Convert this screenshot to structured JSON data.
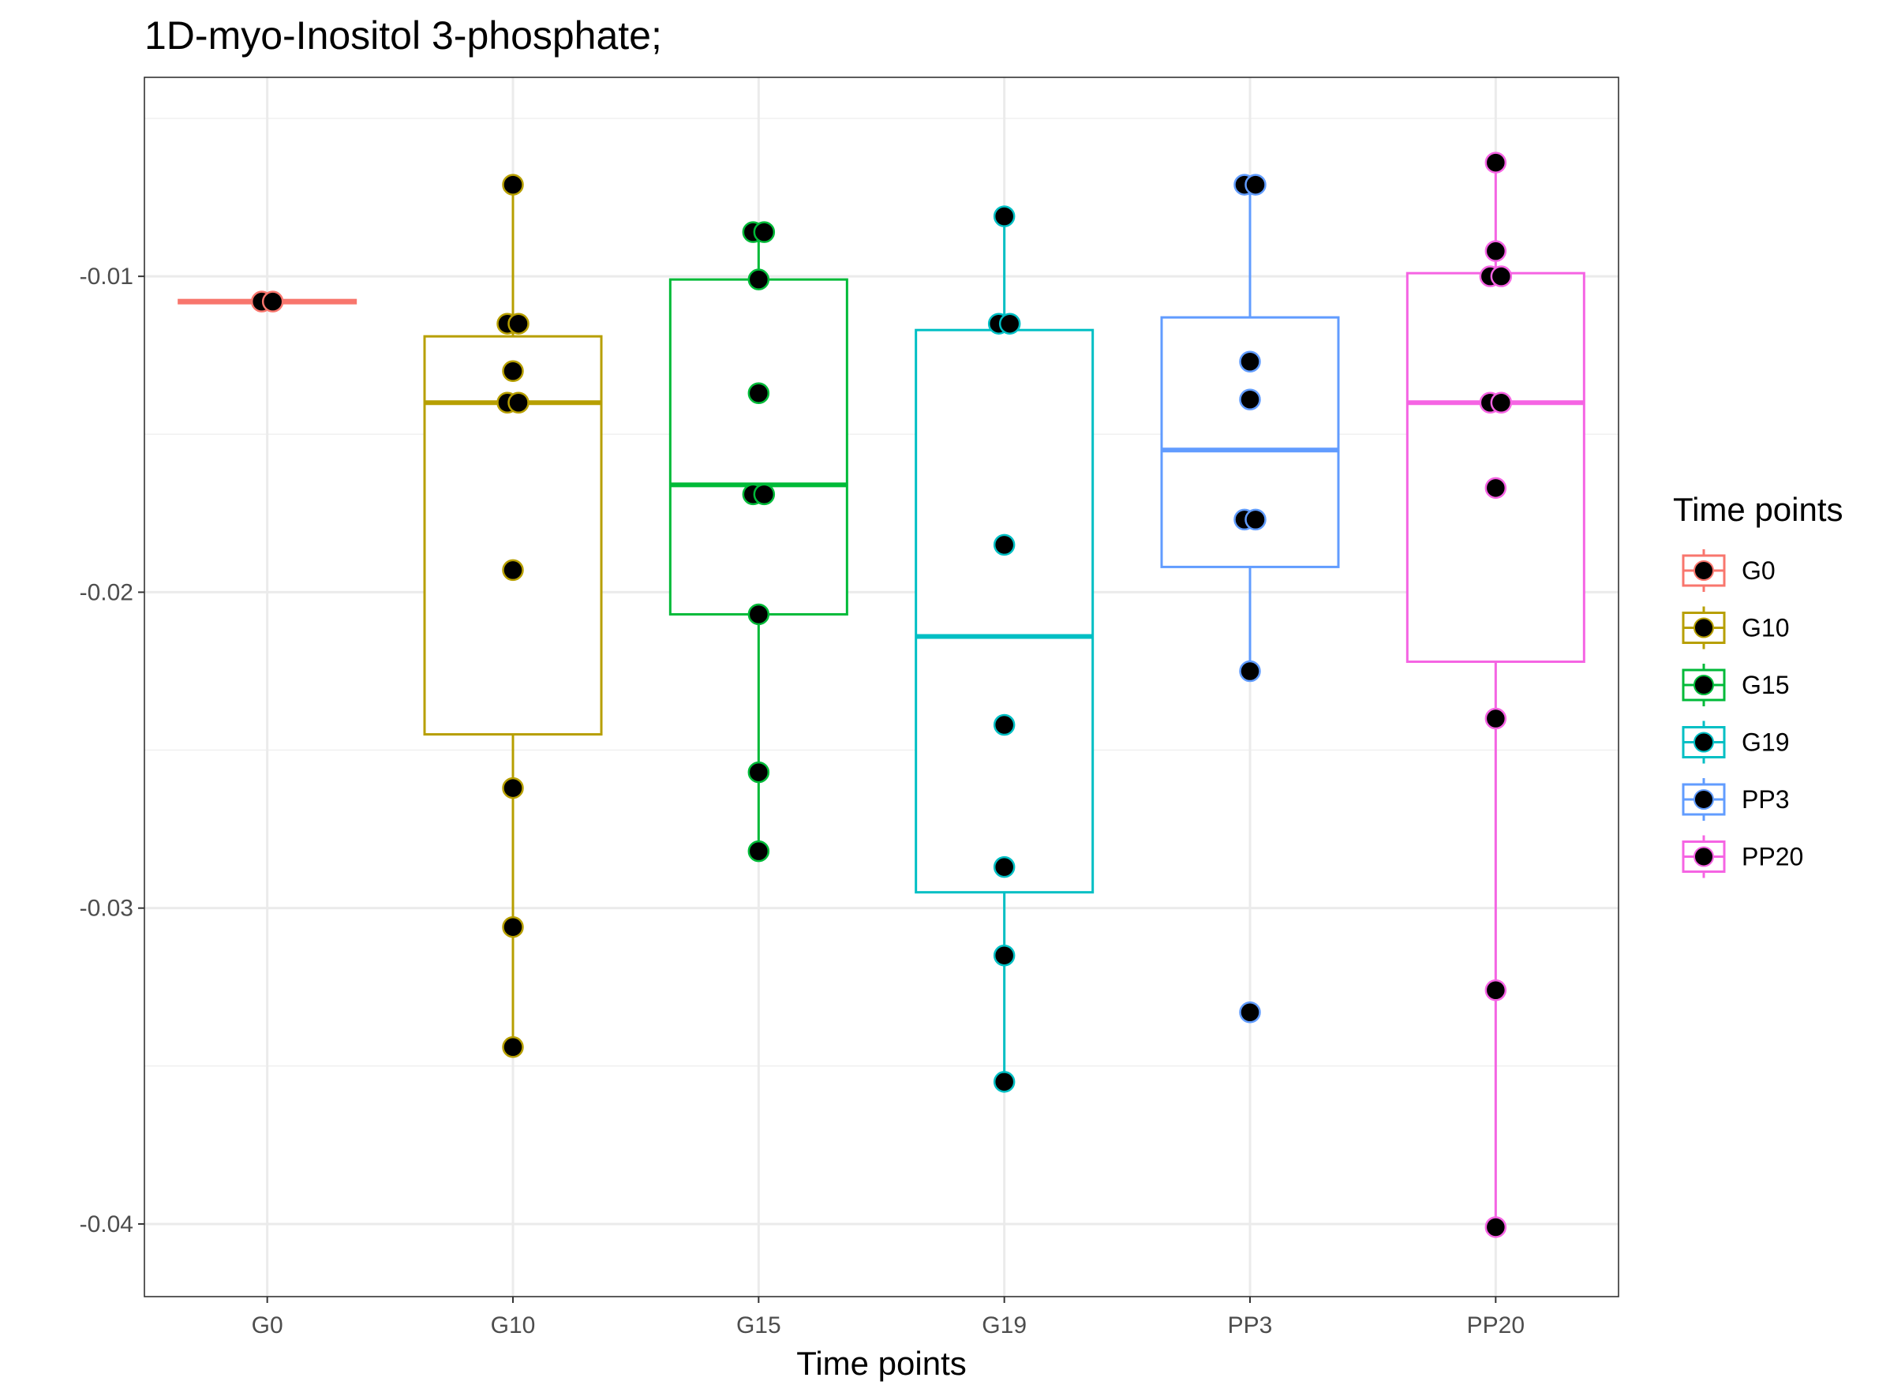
{
  "chart_data": {
    "type": "box",
    "title": "1D-myo-Inositol 3-phosphate;",
    "xlabel": "Time points",
    "ylabel": "",
    "ylim": [
      -0.0423,
      -0.0037
    ],
    "yticks": [
      -0.01,
      -0.02,
      -0.03,
      -0.04
    ],
    "ytick_labels": [
      "-0.01",
      "-0.02",
      "-0.03",
      "-0.04"
    ],
    "grid": true,
    "categories": [
      "G0",
      "G10",
      "G15",
      "G19",
      "PP3",
      "PP20"
    ],
    "legend": {
      "title": "Time points",
      "position": "right"
    },
    "series": [
      {
        "name": "G0",
        "color": "#F8766D",
        "box": {
          "whisker_low": -0.01085,
          "q1": -0.01085,
          "median": -0.0108,
          "q3": -0.01075,
          "whisker_high": -0.01075
        },
        "points": [
          -0.0108,
          -0.0108
        ]
      },
      {
        "name": "G10",
        "color": "#B79F00",
        "box": {
          "whisker_low": -0.0344,
          "q1": -0.0245,
          "median": -0.014,
          "q3": -0.0119,
          "whisker_high": -0.0071
        },
        "points": [
          -0.0071,
          -0.0115,
          -0.0115,
          -0.013,
          -0.014,
          -0.014,
          -0.0193,
          -0.0262,
          -0.0306,
          -0.0344
        ]
      },
      {
        "name": "G15",
        "color": "#00BA38",
        "box": {
          "whisker_low": -0.0282,
          "q1": -0.0207,
          "median": -0.0166,
          "q3": -0.0101,
          "whisker_high": -0.0086
        },
        "points": [
          -0.0086,
          -0.0086,
          -0.0101,
          -0.0137,
          -0.0169,
          -0.0169,
          -0.0207,
          -0.0257,
          -0.0282
        ]
      },
      {
        "name": "G19",
        "color": "#00BFC4",
        "box": {
          "whisker_low": -0.0355,
          "q1": -0.0295,
          "median": -0.0214,
          "q3": -0.0117,
          "whisker_high": -0.0081
        },
        "points": [
          -0.0081,
          -0.0115,
          -0.0115,
          -0.0185,
          -0.0242,
          -0.0287,
          -0.0315,
          -0.0355
        ]
      },
      {
        "name": "PP3",
        "color": "#619CFF",
        "box": {
          "whisker_low": -0.0225,
          "q1": -0.0192,
          "median": -0.0155,
          "q3": -0.0113,
          "whisker_high": -0.0071
        },
        "points": [
          -0.0071,
          -0.0071,
          -0.0127,
          -0.0139,
          -0.0177,
          -0.0177,
          -0.0225,
          -0.0333
        ]
      },
      {
        "name": "PP20",
        "color": "#F564E3",
        "box": {
          "whisker_low": -0.0401,
          "q1": -0.0222,
          "median": -0.014,
          "q3": -0.0099,
          "whisker_high": -0.0064
        },
        "points": [
          -0.0064,
          -0.0092,
          -0.01,
          -0.01,
          -0.014,
          -0.014,
          -0.0167,
          -0.024,
          -0.0326,
          -0.0401
        ]
      }
    ]
  }
}
